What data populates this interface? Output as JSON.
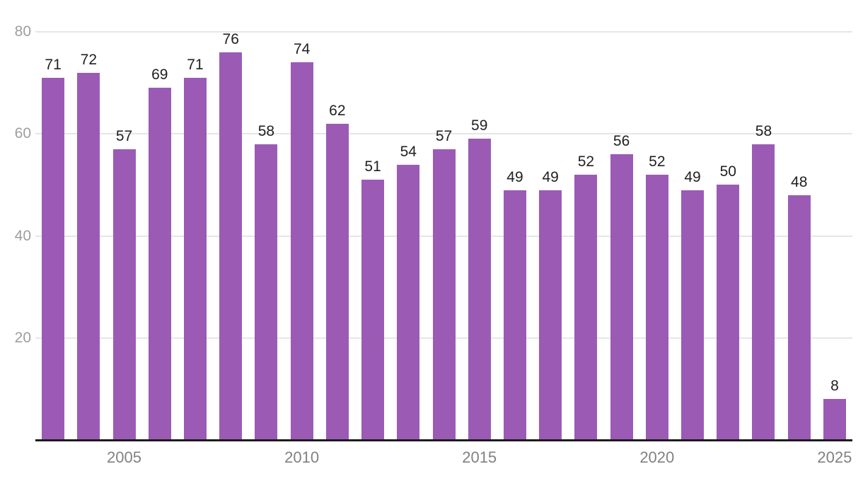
{
  "chart_data": {
    "type": "bar",
    "title": "",
    "xlabel": "",
    "ylabel": "",
    "categories": [
      "2003",
      "2004",
      "2005",
      "2006",
      "2007",
      "2008",
      "2009",
      "2010",
      "2011",
      "2012",
      "2013",
      "2014",
      "2015",
      "2016",
      "2017",
      "2018",
      "2019",
      "2020",
      "2021",
      "2022",
      "2023",
      "2024",
      "2025"
    ],
    "values": [
      71,
      72,
      57,
      69,
      71,
      76,
      58,
      74,
      62,
      51,
      54,
      57,
      59,
      49,
      49,
      52,
      56,
      52,
      49,
      50,
      58,
      48,
      8
    ],
    "value_labels_shown": true,
    "ylim": [
      0,
      80
    ],
    "yticks": [
      20,
      40,
      60,
      80
    ],
    "xticks": [
      "2005",
      "2010",
      "2015",
      "2020",
      "2025"
    ],
    "grid": true,
    "legend": "none",
    "colors": {
      "bar": "#9b5bb5",
      "gridline": "#e6e6e6",
      "axis_line": "#1c1c1c",
      "y_tick_text": "#9e9e9e",
      "x_tick_text": "#818181",
      "value_label_text": "#212121",
      "background": "#ffffff"
    }
  }
}
